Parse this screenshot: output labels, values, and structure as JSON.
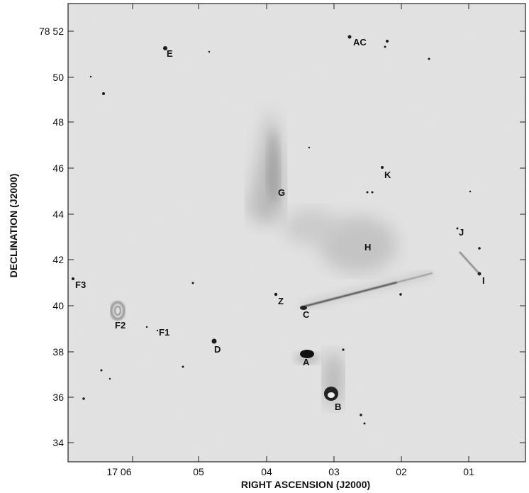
{
  "image": {
    "kind": "grayscale radio-astronomy map",
    "colormap": "inverted gray"
  },
  "axes": {
    "x_title": "RIGHT ASCENSION (J2000)",
    "y_title": "DECLINATION (J2000)",
    "x_ticks": [
      "17 06",
      "05",
      "04",
      "03",
      "02",
      "01"
    ],
    "y_ticks": [
      "78 52",
      "50",
      "48",
      "46",
      "44",
      "42",
      "40",
      "38",
      "36",
      "34"
    ]
  },
  "sources": {
    "AC": "AC",
    "E": "E",
    "K": "K",
    "G": "G",
    "J": "J",
    "H": "H",
    "I": "I",
    "F3": "F3",
    "Z": "Z",
    "C": "C",
    "F2": "F2",
    "F1": "F1",
    "D": "D",
    "A": "A",
    "B": "B"
  }
}
